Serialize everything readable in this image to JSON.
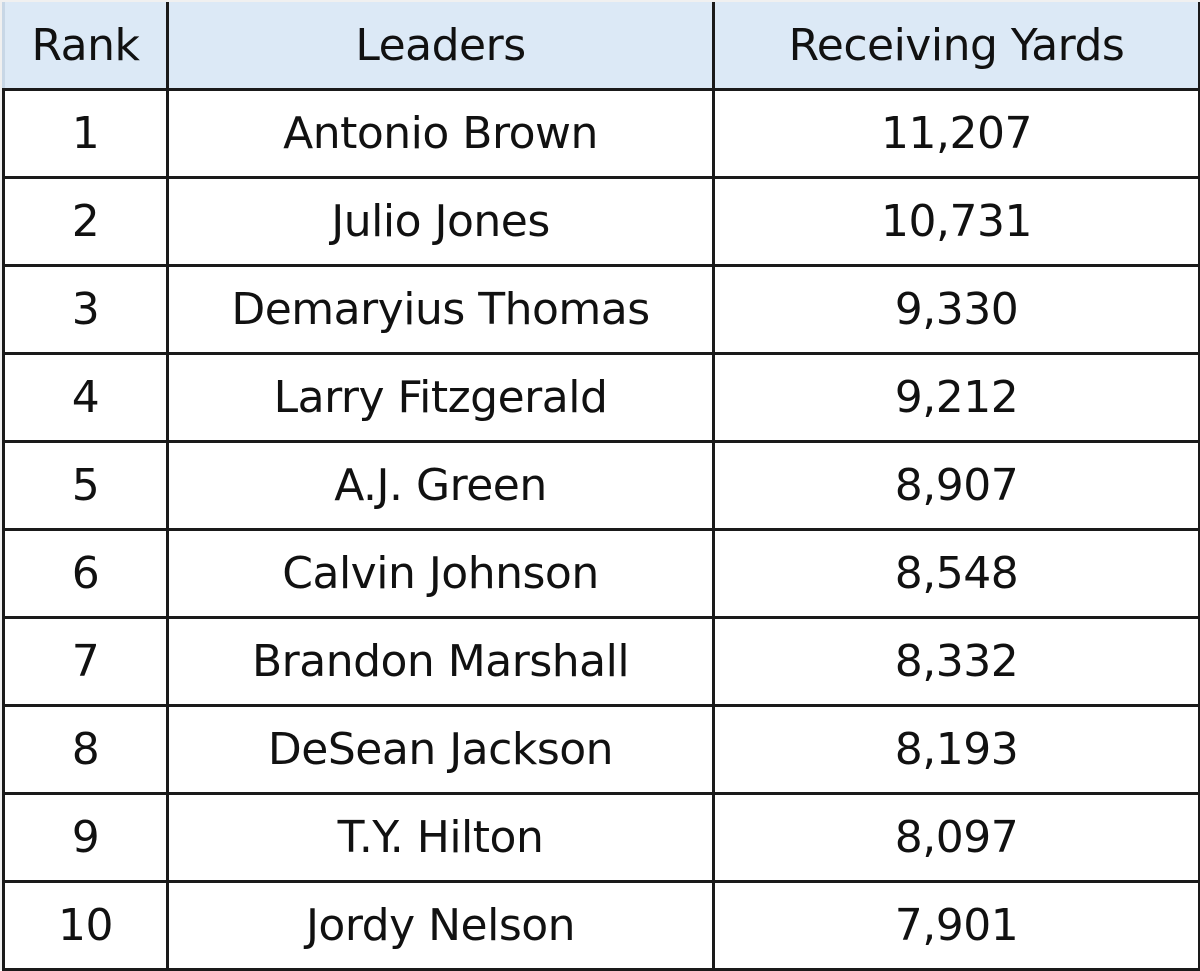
{
  "table": {
    "header": {
      "rank": "Rank",
      "leaders": "Leaders",
      "yards": "Receiving Yards"
    },
    "header_bg": "#dce9f6",
    "border_color": "#1a1a1a",
    "rows": [
      {
        "rank": "1",
        "name": "Antonio Brown",
        "yards": "11,207"
      },
      {
        "rank": "2",
        "name": "Julio Jones",
        "yards": "10,731"
      },
      {
        "rank": "3",
        "name": "Demaryius Thomas",
        "yards": "9,330"
      },
      {
        "rank": "4",
        "name": "Larry Fitzgerald",
        "yards": "9,212"
      },
      {
        "rank": "5",
        "name": "A.J. Green",
        "yards": "8,907"
      },
      {
        "rank": "6",
        "name": "Calvin Johnson",
        "yards": "8,548"
      },
      {
        "rank": "7",
        "name": "Brandon Marshall",
        "yards": "8,332"
      },
      {
        "rank": "8",
        "name": "DeSean Jackson",
        "yards": "8,193"
      },
      {
        "rank": "9",
        "name": "T.Y. Hilton",
        "yards": "8,097"
      },
      {
        "rank": "10",
        "name": "Jordy Nelson",
        "yards": "7,901"
      }
    ]
  },
  "chart_data": {
    "type": "table",
    "title": "",
    "columns": [
      "Rank",
      "Leaders",
      "Receiving Yards"
    ],
    "categories": [
      "Antonio Brown",
      "Julio Jones",
      "Demaryius Thomas",
      "Larry Fitzgerald",
      "A.J. Green",
      "Calvin Johnson",
      "Brandon Marshall",
      "DeSean Jackson",
      "T.Y. Hilton",
      "Jordy Nelson"
    ],
    "ranks": [
      1,
      2,
      3,
      4,
      5,
      6,
      7,
      8,
      9,
      10
    ],
    "values": [
      11207,
      10731,
      9330,
      9212,
      8907,
      8548,
      8332,
      8193,
      8097,
      7901
    ],
    "xlabel": "Leaders",
    "ylabel": "Receiving Yards"
  }
}
